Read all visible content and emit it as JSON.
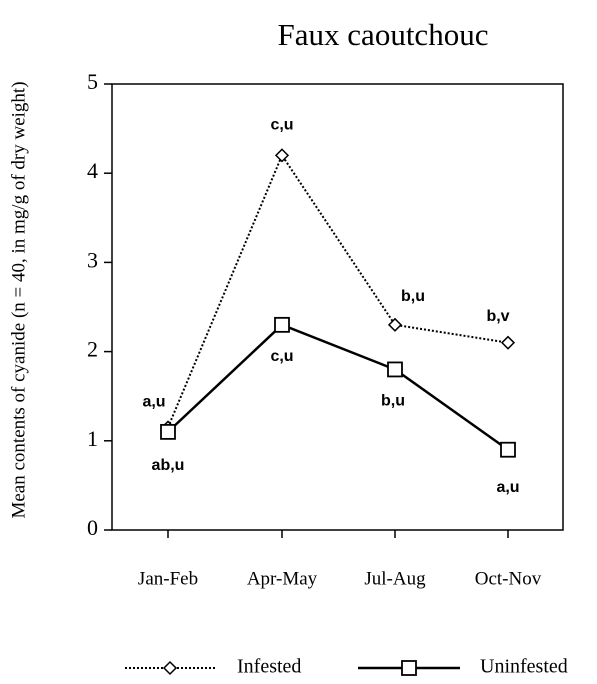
{
  "chart_data": {
    "type": "line",
    "title": "Faux caoutchouc",
    "ylabel": "Mean contents of cyanide (n = 40, in mg/g of dry weight)",
    "categories": [
      "Jan-Feb",
      "Apr-May",
      "Jul-Aug",
      "Oct-Nov"
    ],
    "series": [
      {
        "name": "Infested",
        "color": "#000000",
        "style": "dotted",
        "marker": "diamond",
        "values": [
          1.15,
          4.2,
          2.3,
          2.1
        ],
        "point_labels": [
          "a,u",
          "c,u",
          "b,u",
          "b,v"
        ]
      },
      {
        "name": "Uninfested",
        "color": "#000000",
        "style": "solid",
        "marker": "square",
        "values": [
          1.1,
          2.3,
          1.8,
          0.9
        ],
        "point_labels": [
          "ab,u",
          "c,u",
          "b,u",
          "a,u"
        ]
      }
    ],
    "ylim": [
      0,
      5
    ],
    "yticks": [
      0,
      1,
      2,
      3,
      4,
      5
    ],
    "grid": false
  }
}
